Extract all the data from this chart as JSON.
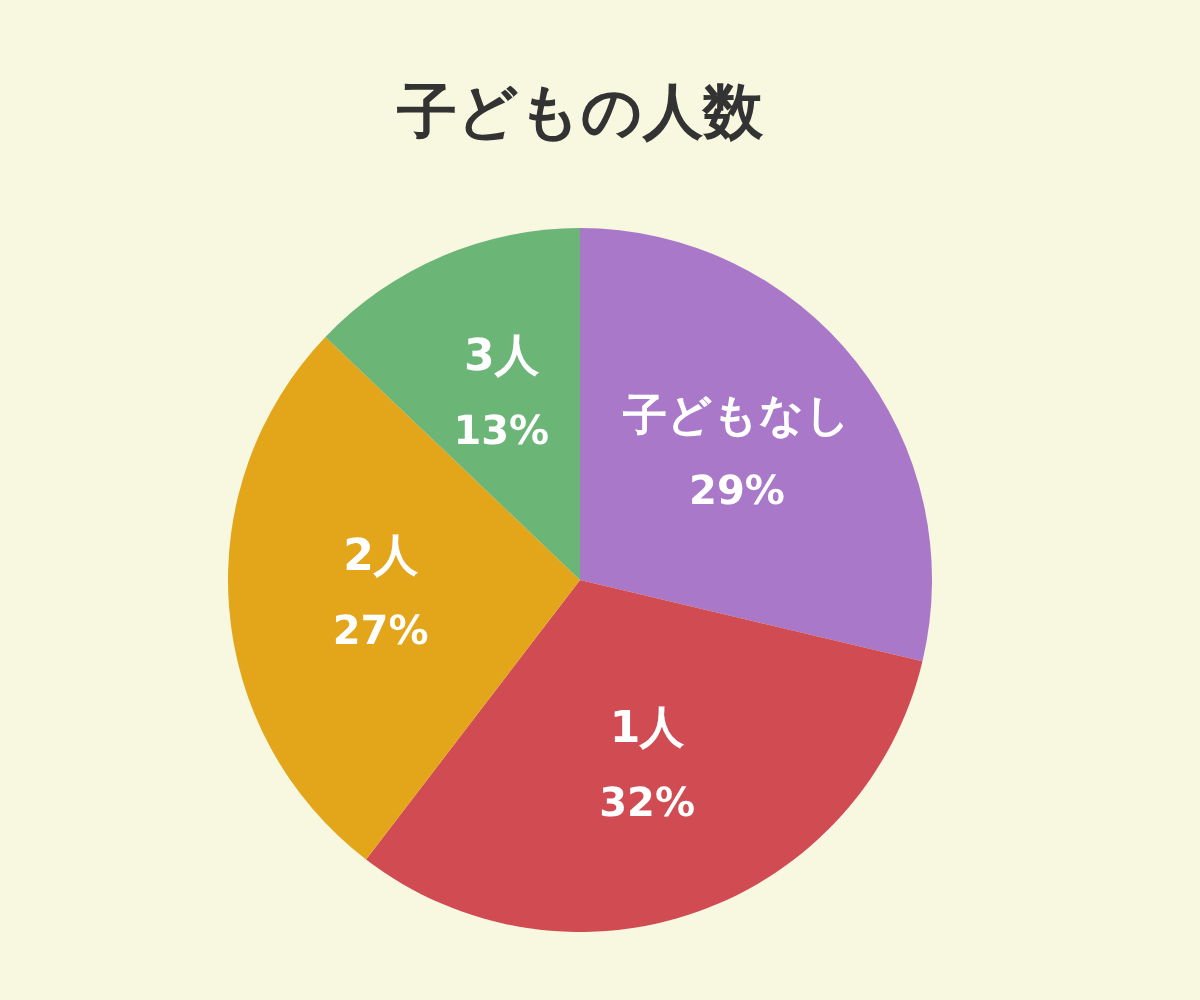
{
  "chart_data": {
    "type": "pie",
    "title": "子どもの人数",
    "categories": [
      "子どもなし",
      "1人",
      "2人",
      "3人"
    ],
    "values": [
      29,
      32,
      27,
      13
    ],
    "colors": [
      "#a978c8",
      "#d14b52",
      "#e3a51a",
      "#6bb577"
    ],
    "value_labels": [
      "29%",
      "32%",
      "27%",
      "13%"
    ],
    "legend": false
  }
}
